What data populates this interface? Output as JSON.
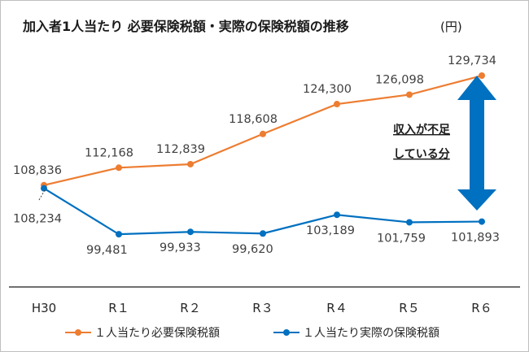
{
  "chart_data": {
    "type": "line",
    "title": "加入者1人当たり 必要保険税額・実際の保険税額の推移",
    "unit": "(円)",
    "categories": [
      "H30",
      "R１",
      "R２",
      "R３",
      "R４",
      "R５",
      "R６"
    ],
    "series": [
      {
        "name": "１人当たり必要保険税額",
        "color": "#ed7d31",
        "values": [
          108836,
          112168,
          112839,
          118608,
          124300,
          126098,
          129734
        ],
        "labels": [
          "108,836",
          "112,168",
          "112,839",
          "118,608",
          "124,300",
          "126,098",
          "129,734"
        ]
      },
      {
        "name": "１人当たり実際の保険税額",
        "color": "#0070c0",
        "values": [
          108234,
          99481,
          99933,
          99620,
          103189,
          101759,
          101893
        ],
        "labels": [
          "108,234",
          "99,481",
          "99,933",
          "99,620",
          "103,189",
          "101,759",
          "101,893"
        ]
      }
    ],
    "legend_position": "bottom",
    "grid": false,
    "annotation": {
      "lines": [
        "収入が不足",
        "している分"
      ],
      "arrow_color": "#0070c0"
    }
  }
}
